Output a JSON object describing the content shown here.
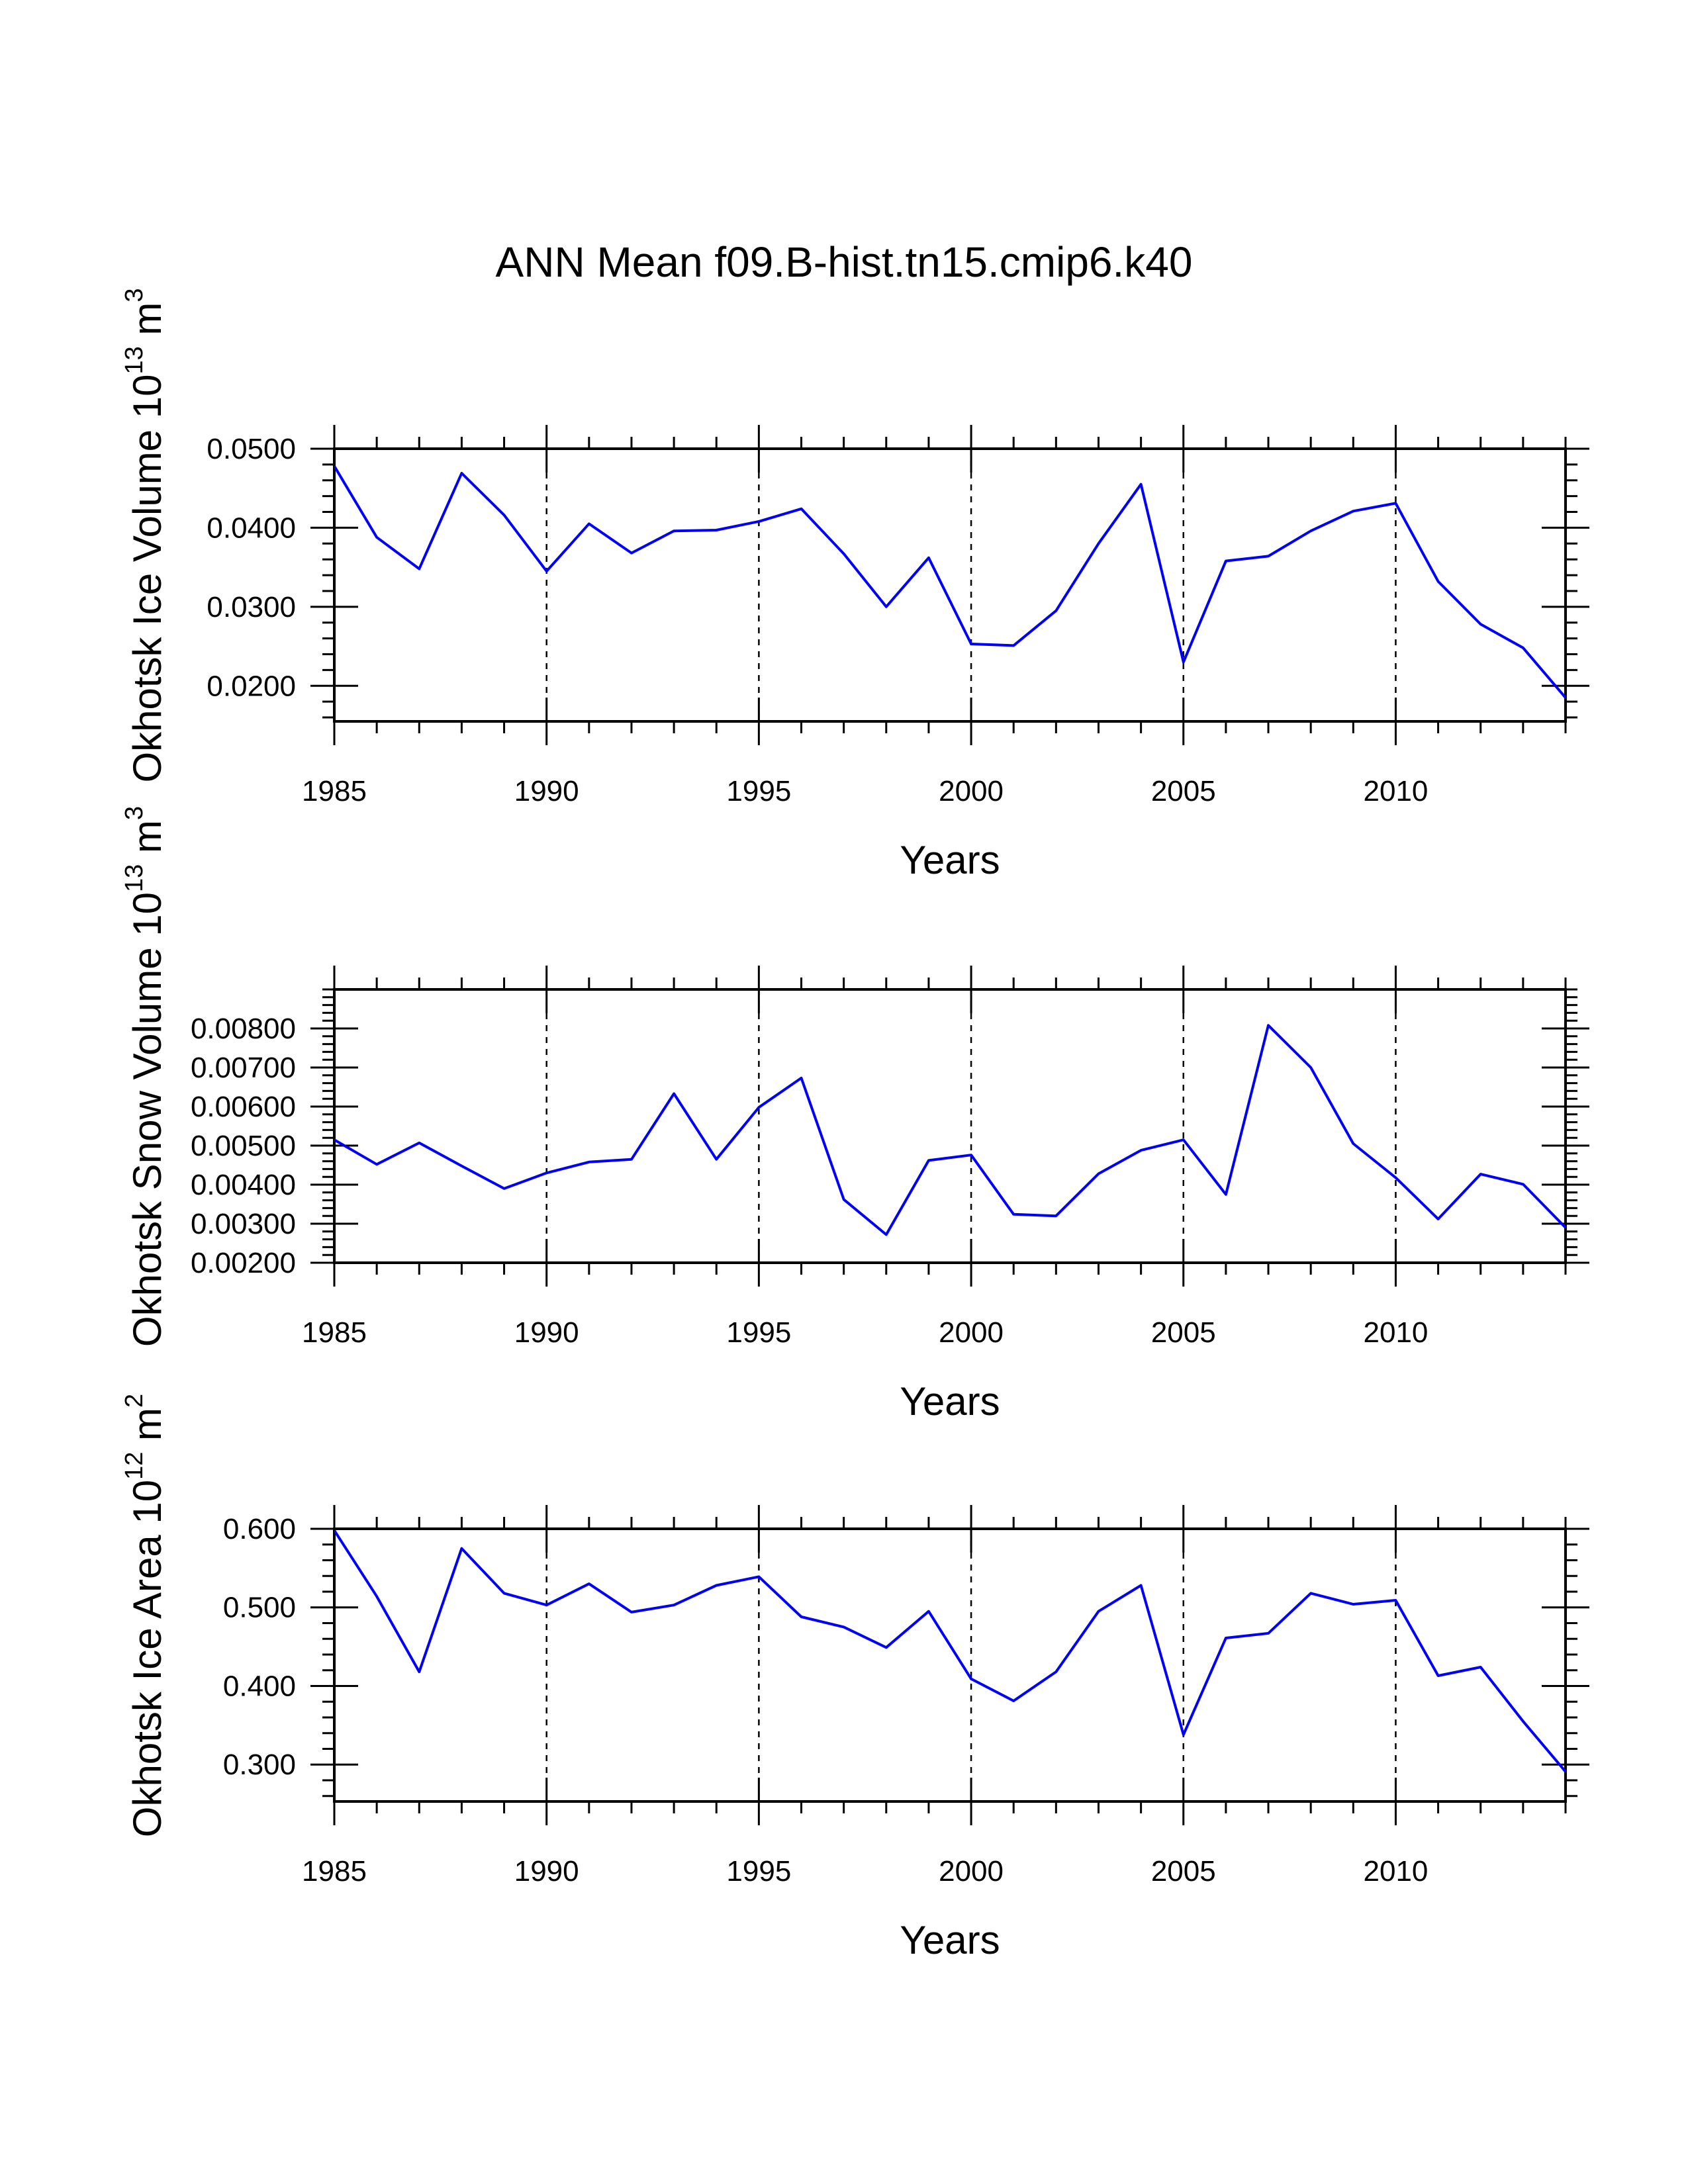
{
  "title": "ANN Mean f09.B-hist.tn15.cmip6.k40",
  "colors": {
    "line": "#0000ff",
    "axis": "#000000",
    "background": "#ffffff"
  },
  "chart_data": [
    {
      "type": "line",
      "xlabel": "Years",
      "ylabel": "Okhotsk Ice Volume 10",
      "ylabel_sup_exp": "13",
      "ylabel_unit": "m",
      "ylabel_sup_unit": "3",
      "xlim": [
        1985,
        2014
      ],
      "ylim": [
        0.0155,
        0.05
      ],
      "xticks": [
        1985,
        1990,
        1995,
        2000,
        2005,
        2010
      ],
      "xtick_labels": [
        "1985",
        "1990",
        "1995",
        "2000",
        "2005",
        "2010"
      ],
      "yticks": [
        0.02,
        0.03,
        0.04,
        0.05
      ],
      "ytick_labels": [
        "0.0200",
        "0.0300",
        "0.0400",
        "0.0500"
      ],
      "grid_x": [
        1990,
        1995,
        2000,
        2005,
        2010
      ],
      "x": [
        1985,
        1986,
        1987,
        1988,
        1989,
        1990,
        1991,
        1992,
        1993,
        1994,
        1995,
        1996,
        1997,
        1998,
        1999,
        2000,
        2001,
        2002,
        2003,
        2004,
        2005,
        2006,
        2007,
        2008,
        2009,
        2010,
        2011,
        2012,
        2013,
        2014
      ],
      "values": [
        0.0478,
        0.0388,
        0.0348,
        0.0469,
        0.0416,
        0.0345,
        0.0405,
        0.0368,
        0.0396,
        0.0397,
        0.0408,
        0.0424,
        0.0367,
        0.03,
        0.0362,
        0.0253,
        0.0251,
        0.0295,
        0.038,
        0.0455,
        0.023,
        0.0358,
        0.0364,
        0.0396,
        0.0421,
        0.0431,
        0.0332,
        0.0278,
        0.0248,
        0.0185
      ]
    },
    {
      "type": "line",
      "xlabel": "Years",
      "ylabel": "Okhotsk Snow Volume 10",
      "ylabel_sup_exp": "13",
      "ylabel_unit": "m",
      "ylabel_sup_unit": "3",
      "xlim": [
        1985,
        2014
      ],
      "ylim": [
        0.002,
        0.009
      ],
      "xticks": [
        1985,
        1990,
        1995,
        2000,
        2005,
        2010
      ],
      "xtick_labels": [
        "1985",
        "1990",
        "1995",
        "2000",
        "2005",
        "2010"
      ],
      "yticks": [
        0.002,
        0.003,
        0.004,
        0.005,
        0.006,
        0.007,
        0.008
      ],
      "ytick_labels": [
        "0.00200",
        "0.00300",
        "0.00400",
        "0.00500",
        "0.00600",
        "0.00700",
        "0.00800"
      ],
      "grid_x": [
        1990,
        1995,
        2000,
        2005,
        2010
      ],
      "x": [
        1985,
        1986,
        1987,
        1988,
        1989,
        1990,
        1991,
        1992,
        1993,
        1994,
        1995,
        1996,
        1997,
        1998,
        1999,
        2000,
        2001,
        2002,
        2003,
        2004,
        2005,
        2006,
        2007,
        2008,
        2009,
        2010,
        2011,
        2012,
        2013,
        2014
      ],
      "values": [
        0.00515,
        0.00452,
        0.00507,
        0.00448,
        0.0039,
        0.0043,
        0.00458,
        0.00465,
        0.00633,
        0.00465,
        0.00598,
        0.00673,
        0.00362,
        0.00272,
        0.00462,
        0.00476,
        0.00324,
        0.0032,
        0.00428,
        0.00488,
        0.00515,
        0.00375,
        0.00808,
        0.007,
        0.00505,
        0.00418,
        0.00312,
        0.00427,
        0.00401,
        0.0029
      ]
    },
    {
      "type": "line",
      "xlabel": "Years",
      "ylabel": "Okhotsk Ice Area 10",
      "ylabel_sup_exp": "12",
      "ylabel_unit": "m",
      "ylabel_sup_unit": "2",
      "xlim": [
        1985,
        2014
      ],
      "ylim": [
        0.253,
        0.6
      ],
      "xticks": [
        1985,
        1990,
        1995,
        2000,
        2005,
        2010
      ],
      "xtick_labels": [
        "1985",
        "1990",
        "1995",
        "2000",
        "2005",
        "2010"
      ],
      "yticks": [
        0.3,
        0.4,
        0.5,
        0.6
      ],
      "ytick_labels": [
        "0.300",
        "0.400",
        "0.500",
        "0.600"
      ],
      "grid_x": [
        1990,
        1995,
        2000,
        2005,
        2010
      ],
      "x": [
        1985,
        1986,
        1987,
        1988,
        1989,
        1990,
        1991,
        1992,
        1993,
        1994,
        1995,
        1996,
        1997,
        1998,
        1999,
        2000,
        2001,
        2002,
        2003,
        2004,
        2005,
        2006,
        2007,
        2008,
        2009,
        2010,
        2011,
        2012,
        2013,
        2014
      ],
      "values": [
        0.598,
        0.514,
        0.418,
        0.575,
        0.518,
        0.503,
        0.53,
        0.494,
        0.503,
        0.528,
        0.539,
        0.488,
        0.475,
        0.449,
        0.495,
        0.409,
        0.381,
        0.418,
        0.495,
        0.528,
        0.338,
        0.461,
        0.467,
        0.518,
        0.504,
        0.509,
        0.413,
        0.424,
        0.355,
        0.291
      ]
    }
  ]
}
